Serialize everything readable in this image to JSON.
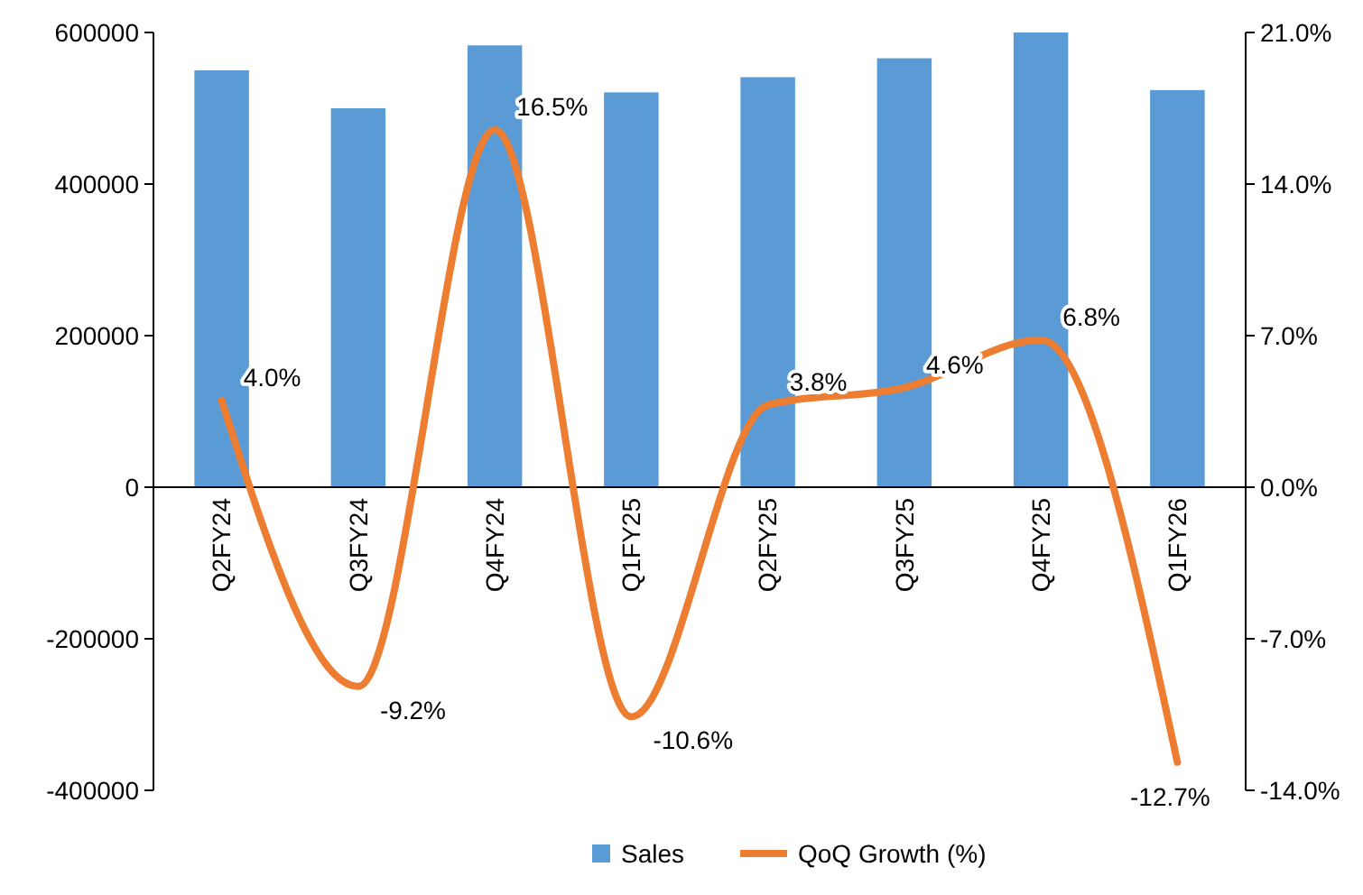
{
  "chart_data": {
    "type": "bar",
    "categories": [
      "Q2FY24",
      "Q3FY24",
      "Q4FY24",
      "Q1FY25",
      "Q2FY25",
      "Q3FY25",
      "Q4FY25",
      "Q1FY26"
    ],
    "series": [
      {
        "name": "Sales",
        "color": "#5b9bd5",
        "values": [
          550000,
          500000,
          583000,
          521000,
          541000,
          566000,
          600000,
          524000
        ]
      },
      {
        "name": "QoQ Growth (%)",
        "type": "line",
        "axis": "y2",
        "color": "#ed7d31",
        "values": [
          4.0,
          -9.2,
          16.5,
          -10.6,
          3.8,
          4.6,
          6.8,
          -12.7
        ],
        "value_labels": [
          "4.0%",
          "-9.2%",
          "16.5%",
          "-10.6%",
          "3.8%",
          "4.6%",
          "6.8%",
          "-12.7%"
        ]
      }
    ],
    "ylim": [
      -400000,
      600000
    ],
    "yticks": [
      -400000,
      -200000,
      0,
      200000,
      400000,
      600000
    ],
    "y2lim": [
      -14,
      21
    ],
    "y2ticks": [
      {
        "value": -14,
        "label": "-14.0%"
      },
      {
        "value": -7,
        "label": "-7.0%"
      },
      {
        "value": 0,
        "label": "0.0%"
      },
      {
        "value": 7,
        "label": "7.0%"
      },
      {
        "value": 14,
        "label": "14.0%"
      },
      {
        "value": 21,
        "label": "21.0%"
      }
    ],
    "legend": "bottom",
    "grid": false,
    "marker": "none",
    "line_style": "solid"
  }
}
